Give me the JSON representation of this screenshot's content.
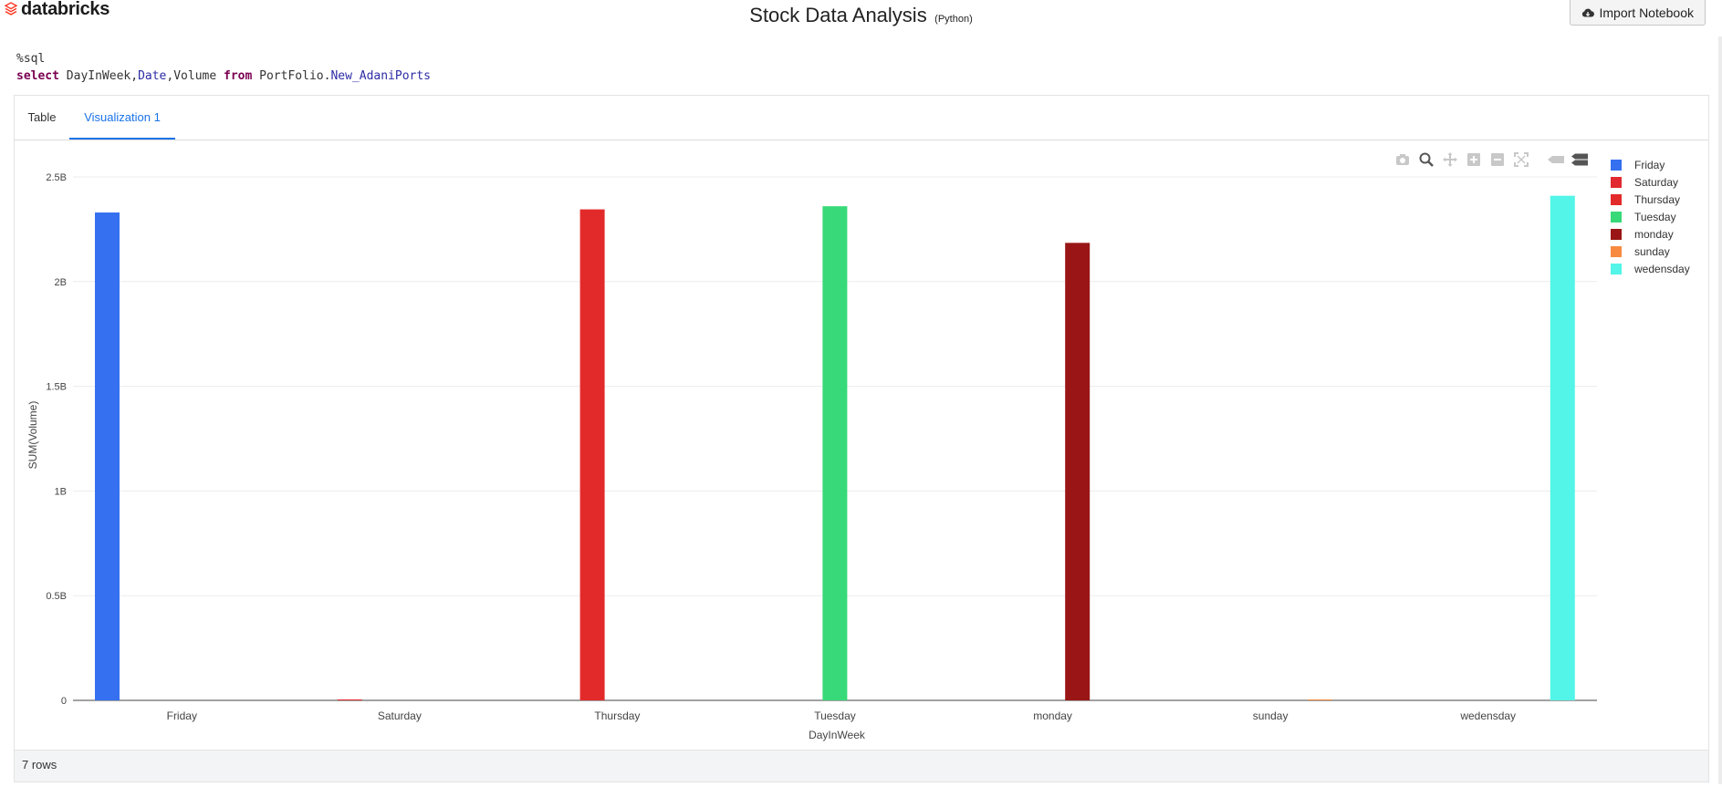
{
  "brand": {
    "name": "databricks",
    "logo_color": "#ff3621"
  },
  "notebook": {
    "title": "Stock Data Analysis",
    "language": "(Python)"
  },
  "import_button": {
    "label": "Import Notebook",
    "icon": "cloud-download-icon"
  },
  "code": {
    "magic": "%sql",
    "select_kw": "select",
    "col1": "DayInWeek,",
    "col2": "Date",
    "col3": ",Volume",
    "from_kw": "from",
    "schema": "PortFolio.",
    "table": "New_AdaniPorts"
  },
  "tabs": [
    {
      "label": "Table",
      "active": false
    },
    {
      "label": "Visualization 1",
      "active": true
    }
  ],
  "toolbar": [
    "camera-icon",
    "zoom-icon",
    "pan-icon",
    "zoom-in-icon",
    "zoom-out-icon",
    "autoscale-icon",
    "spike-lines-icon",
    "compare-hover-icon"
  ],
  "chart_data": {
    "type": "bar",
    "categories": [
      "Friday",
      "Saturday",
      "Thursday",
      "Tuesday",
      "monday",
      "sunday",
      "wedensday"
    ],
    "series": [
      {
        "name": "Friday",
        "color": "#3470f0",
        "values": [
          2330000000,
          null,
          null,
          null,
          null,
          null,
          null
        ]
      },
      {
        "name": "Saturday",
        "color": "#e02a2f",
        "values": [
          null,
          1500000,
          null,
          null,
          null,
          null,
          null
        ]
      },
      {
        "name": "Thursday",
        "color": "#e32a2a",
        "values": [
          null,
          null,
          2345000000,
          null,
          null,
          null,
          null
        ]
      },
      {
        "name": "Tuesday",
        "color": "#38d978",
        "values": [
          null,
          null,
          null,
          2360000000,
          null,
          null,
          null
        ]
      },
      {
        "name": "monday",
        "color": "#9a1616",
        "values": [
          null,
          null,
          null,
          null,
          2185000000,
          null,
          null
        ]
      },
      {
        "name": "sunday",
        "color": "#f88a40",
        "values": [
          null,
          null,
          null,
          null,
          null,
          1500000,
          null
        ]
      },
      {
        "name": "wedensday",
        "color": "#52f5e7",
        "values": [
          null,
          null,
          null,
          null,
          null,
          null,
          2410000000
        ]
      }
    ],
    "xlabel": "DayInWeek",
    "ylabel": "SUM(Volume)",
    "ylim": [
      0,
      2500000000
    ],
    "yticks": [
      "0",
      "0.5B",
      "1B",
      "1.5B",
      "2B",
      "2.5B"
    ],
    "grid": true,
    "legend": "top-right"
  },
  "footer": {
    "rows_label": "7 rows"
  }
}
